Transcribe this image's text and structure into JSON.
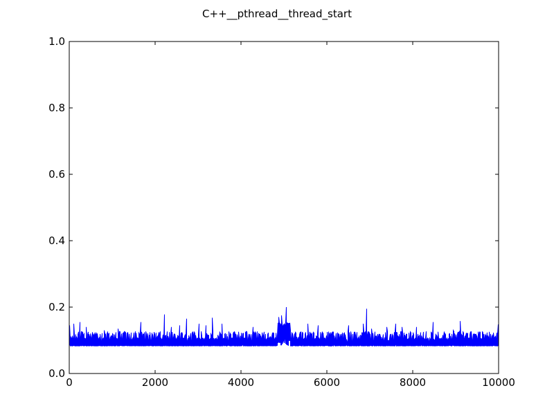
{
  "chart_data": {
    "type": "line",
    "title": "C++__pthread__thread_start",
    "xlabel": "",
    "ylabel": "",
    "xlim": [
      0,
      10000
    ],
    "ylim": [
      0.0,
      1.0
    ],
    "grid": false,
    "x_ticks": [
      "0",
      "2000",
      "4000",
      "6000",
      "8000",
      "10000"
    ],
    "y_ticks": [
      "0.0",
      "0.2",
      "0.4",
      "0.6",
      "0.8",
      "1.0"
    ],
    "series_color": "#0000ff",
    "baseline": 0.083,
    "typical_high": 0.115,
    "n_points": 10000,
    "spikes": [
      {
        "x": 10,
        "y": 0.145
      },
      {
        "x": 100,
        "y": 0.15
      },
      {
        "x": 250,
        "y": 0.155
      },
      {
        "x": 400,
        "y": 0.14
      },
      {
        "x": 820,
        "y": 0.13
      },
      {
        "x": 1130,
        "y": 0.135
      },
      {
        "x": 1670,
        "y": 0.155
      },
      {
        "x": 2220,
        "y": 0.178
      },
      {
        "x": 2380,
        "y": 0.14
      },
      {
        "x": 2570,
        "y": 0.145
      },
      {
        "x": 2730,
        "y": 0.165
      },
      {
        "x": 3020,
        "y": 0.15
      },
      {
        "x": 3180,
        "y": 0.145
      },
      {
        "x": 3330,
        "y": 0.168
      },
      {
        "x": 3560,
        "y": 0.15
      },
      {
        "x": 4280,
        "y": 0.14
      },
      {
        "x": 4880,
        "y": 0.17
      },
      {
        "x": 4950,
        "y": 0.175
      },
      {
        "x": 5050,
        "y": 0.2
      },
      {
        "x": 5130,
        "y": 0.14
      },
      {
        "x": 5550,
        "y": 0.15
      },
      {
        "x": 5800,
        "y": 0.145
      },
      {
        "x": 6500,
        "y": 0.145
      },
      {
        "x": 6850,
        "y": 0.15
      },
      {
        "x": 6930,
        "y": 0.195
      },
      {
        "x": 7040,
        "y": 0.135
      },
      {
        "x": 7400,
        "y": 0.14
      },
      {
        "x": 7600,
        "y": 0.15
      },
      {
        "x": 7750,
        "y": 0.14
      },
      {
        "x": 8080,
        "y": 0.14
      },
      {
        "x": 8480,
        "y": 0.155
      },
      {
        "x": 8950,
        "y": 0.13
      },
      {
        "x": 9100,
        "y": 0.158
      },
      {
        "x": 9550,
        "y": 0.125
      },
      {
        "x": 9990,
        "y": 0.148
      }
    ]
  }
}
